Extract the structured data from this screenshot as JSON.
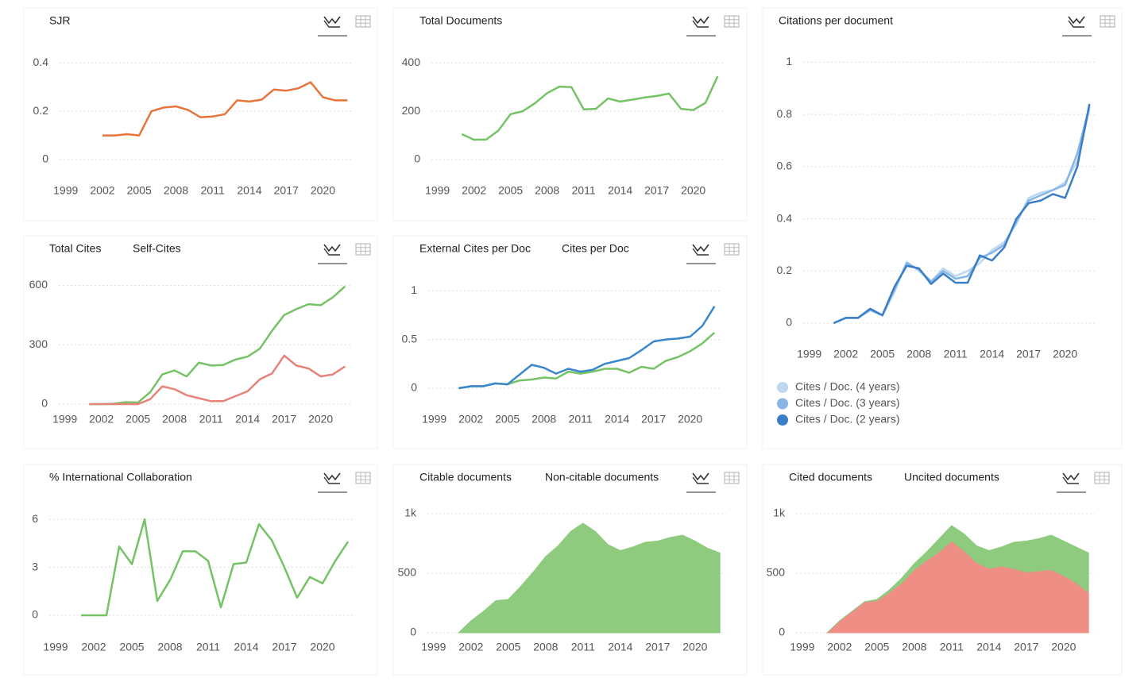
{
  "chart_data": [
    {
      "type": "line",
      "title": "SJR",
      "x": [
        2002,
        2003,
        2004,
        2005,
        2006,
        2007,
        2008,
        2009,
        2010,
        2011,
        2012,
        2013,
        2014,
        2015,
        2016,
        2017,
        2018,
        2019,
        2020,
        2021,
        2022
      ],
      "series": [
        {
          "name": null,
          "color": "#e8743b",
          "values": [
            0.1,
            0.1,
            0.105,
            0.1,
            0.2,
            0.215,
            0.22,
            0.205,
            0.175,
            0.178,
            0.188,
            0.245,
            0.24,
            0.248,
            0.29,
            0.285,
            0.295,
            0.32,
            0.258,
            0.245,
            0.245
          ]
        }
      ],
      "xlim": [
        1998.5,
        2022.5
      ],
      "xticks": [
        1999,
        2002,
        2005,
        2008,
        2011,
        2014,
        2017,
        2020
      ],
      "ylim": [
        0,
        0.45
      ],
      "yticks": [
        0,
        0.2,
        0.4
      ],
      "grid": true
    },
    {
      "type": "line",
      "title": "Total Documents",
      "x": [
        2001,
        2002,
        2003,
        2004,
        2005,
        2006,
        2007,
        2008,
        2009,
        2010,
        2011,
        2012,
        2013,
        2014,
        2015,
        2016,
        2017,
        2018,
        2019,
        2020,
        2021,
        2022
      ],
      "series": [
        {
          "name": null,
          "color": "#76c266",
          "values": [
            105,
            82,
            83,
            120,
            188,
            200,
            233,
            275,
            302,
            300,
            208,
            210,
            253,
            240,
            248,
            257,
            263,
            273,
            210,
            205,
            235,
            345
          ]
        }
      ],
      "xlim": [
        1998.5,
        2022.5
      ],
      "xticks": [
        1999,
        2002,
        2005,
        2008,
        2011,
        2014,
        2017,
        2020
      ],
      "ylim": [
        0,
        450
      ],
      "yticks": [
        0,
        200,
        400
      ],
      "grid": true
    },
    {
      "type": "line",
      "title": "Citations per document",
      "legend": "bottom",
      "x": [
        2001,
        2002,
        2003,
        2004,
        2005,
        2006,
        2007,
        2008,
        2009,
        2010,
        2011,
        2012,
        2013,
        2014,
        2015,
        2016,
        2017,
        2018,
        2019,
        2020,
        2021,
        2022
      ],
      "series": [
        {
          "name": "Cites / Doc. (4 years)",
          "color": "#bdd7f0",
          "values": [
            0,
            0.02,
            0.02,
            0.05,
            0.03,
            0.12,
            0.235,
            0.2,
            0.16,
            0.21,
            0.18,
            0.2,
            0.23,
            0.28,
            0.31,
            0.38,
            0.48,
            0.5,
            0.51,
            0.54,
            0.62,
            0.82
          ]
        },
        {
          "name": "Cites / Doc. (3 years)",
          "color": "#86b6e6",
          "values": [
            0,
            0.02,
            0.02,
            0.05,
            0.03,
            0.13,
            0.23,
            0.205,
            0.16,
            0.2,
            0.17,
            0.18,
            0.25,
            0.27,
            0.3,
            0.39,
            0.47,
            0.49,
            0.51,
            0.53,
            0.65,
            0.83
          ]
        },
        {
          "name": "Cites / Doc. (2 years)",
          "color": "#3a7ec6",
          "values": [
            0,
            0.02,
            0.02,
            0.055,
            0.03,
            0.14,
            0.22,
            0.21,
            0.15,
            0.19,
            0.155,
            0.155,
            0.26,
            0.24,
            0.29,
            0.4,
            0.46,
            0.47,
            0.495,
            0.48,
            0.6,
            0.84
          ]
        }
      ],
      "xlim": [
        1998.5,
        2022.5
      ],
      "xticks": [
        1999,
        2002,
        2005,
        2008,
        2011,
        2014,
        2017,
        2020
      ],
      "ylim": [
        0,
        1.05
      ],
      "yticks": [
        0,
        0.2,
        0.4,
        0.6,
        0.8,
        1
      ],
      "grid": true
    },
    {
      "type": "line",
      "legend": "top",
      "x": [
        2001,
        2002,
        2003,
        2004,
        2005,
        2006,
        2007,
        2008,
        2009,
        2010,
        2011,
        2012,
        2013,
        2014,
        2015,
        2016,
        2017,
        2018,
        2019,
        2020,
        2021,
        2022
      ],
      "series": [
        {
          "name": "Total Cites",
          "color": "#76c266",
          "values": [
            0,
            0,
            2,
            10,
            8,
            60,
            150,
            170,
            140,
            210,
            195,
            198,
            225,
            240,
            280,
            370,
            450,
            480,
            505,
            500,
            540,
            595
          ]
        },
        {
          "name": "Self-Cites",
          "color": "#e8837a",
          "values": [
            0,
            0,
            0,
            0,
            0,
            25,
            90,
            75,
            45,
            30,
            15,
            15,
            40,
            65,
            125,
            155,
            245,
            195,
            180,
            140,
            150,
            190
          ]
        }
      ],
      "xlim": [
        1998.5,
        2022.5
      ],
      "xticks": [
        1999,
        2002,
        2005,
        2008,
        2011,
        2014,
        2017,
        2020
      ],
      "ylim": [
        0,
        650
      ],
      "yticks": [
        0,
        300,
        600
      ],
      "grid": true
    },
    {
      "type": "line",
      "legend": "top",
      "x": [
        2001,
        2002,
        2003,
        2004,
        2005,
        2006,
        2007,
        2008,
        2009,
        2010,
        2011,
        2012,
        2013,
        2014,
        2015,
        2016,
        2017,
        2018,
        2019,
        2020,
        2021,
        2022
      ],
      "series": [
        {
          "name": "External Cites per Doc",
          "color": "#76c266",
          "values": [
            0,
            0.02,
            0.02,
            0.05,
            0.04,
            0.08,
            0.09,
            0.11,
            0.1,
            0.17,
            0.15,
            0.17,
            0.2,
            0.2,
            0.16,
            0.22,
            0.2,
            0.28,
            0.32,
            0.38,
            0.46,
            0.57
          ]
        },
        {
          "name": "Cites per Doc",
          "color": "#3a86cc",
          "values": [
            0,
            0.02,
            0.02,
            0.05,
            0.04,
            0.14,
            0.24,
            0.21,
            0.15,
            0.2,
            0.17,
            0.19,
            0.25,
            0.28,
            0.31,
            0.39,
            0.48,
            0.5,
            0.51,
            0.53,
            0.64,
            0.84
          ]
        }
      ],
      "xlim": [
        1998.5,
        2022.5
      ],
      "xticks": [
        1999,
        2002,
        2005,
        2008,
        2011,
        2014,
        2017,
        2020
      ],
      "ylim": [
        0,
        1.1
      ],
      "yticks": [
        0,
        0.5,
        1
      ],
      "grid": true
    },
    {
      "type": "line",
      "title": "% International Collaboration",
      "x": [
        2001,
        2002,
        2003,
        2004,
        2005,
        2006,
        2007,
        2008,
        2009,
        2010,
        2011,
        2012,
        2013,
        2014,
        2015,
        2016,
        2017,
        2018,
        2019,
        2020,
        2021,
        2022
      ],
      "series": [
        {
          "name": null,
          "color": "#76c266",
          "values": [
            0,
            0,
            0,
            4.3,
            3.2,
            6.0,
            0.9,
            2.2,
            4.0,
            4.0,
            3.4,
            0.5,
            3.2,
            3.3,
            5.7,
            4.7,
            3.0,
            1.1,
            2.4,
            2.0,
            3.4,
            4.6
          ]
        }
      ],
      "xlim": [
        1998.5,
        2022.5
      ],
      "xticks": [
        1999,
        2002,
        2005,
        2008,
        2011,
        2014,
        2017,
        2020
      ],
      "ylim": [
        0,
        7
      ],
      "yticks": [
        0,
        3,
        6
      ],
      "grid": true
    },
    {
      "type": "area",
      "stacked": true,
      "legend": "top",
      "x": [
        2001,
        2002,
        2003,
        2004,
        2005,
        2006,
        2007,
        2008,
        2009,
        2010,
        2011,
        2012,
        2013,
        2014,
        2015,
        2016,
        2017,
        2018,
        2019,
        2020,
        2021,
        2022
      ],
      "series": [
        {
          "name": "Citable documents",
          "color": "#8fcb7f",
          "values": [
            0,
            100,
            180,
            270,
            280,
            390,
            510,
            640,
            730,
            850,
            920,
            850,
            740,
            690,
            720,
            760,
            770,
            800,
            820,
            770,
            710,
            670
          ]
        },
        {
          "name": "Non-citable documents",
          "color": "#ee8e84",
          "values": [
            0,
            0,
            0,
            0,
            0,
            0,
            0,
            0,
            0,
            0,
            0,
            0,
            0,
            0,
            0,
            0,
            0,
            0,
            0,
            0,
            0,
            0
          ]
        }
      ],
      "xlim": [
        1998.5,
        2022.5
      ],
      "xticks": [
        1999,
        2002,
        2005,
        2008,
        2011,
        2014,
        2017,
        2020
      ],
      "ylim": [
        0,
        1100
      ],
      "yticks": [
        0,
        500,
        {
          "value": 1000,
          "label": "1k"
        }
      ],
      "grid": true
    },
    {
      "type": "area",
      "stacked": true,
      "legend": "top",
      "x": [
        2001,
        2002,
        2003,
        2004,
        2005,
        2006,
        2007,
        2008,
        2009,
        2010,
        2011,
        2012,
        2013,
        2014,
        2015,
        2016,
        2017,
        2018,
        2019,
        2020,
        2021,
        2022
      ],
      "series": [
        {
          "name": "Cited documents",
          "color": "#8fcb7f",
          "values": [
            0,
            0,
            0,
            0,
            10,
            20,
            40,
            50,
            70,
            110,
            130,
            140,
            140,
            150,
            160,
            220,
            260,
            270,
            290,
            290,
            300,
            330
          ]
        },
        {
          "name": "Uncited documents",
          "color": "#ee8e84",
          "values": [
            0,
            100,
            180,
            260,
            270,
            340,
            420,
            530,
            610,
            680,
            770,
            690,
            590,
            540,
            560,
            540,
            510,
            520,
            530,
            480,
            420,
            340
          ]
        }
      ],
      "xlim": [
        1998.5,
        2022.5
      ],
      "xticks": [
        1999,
        2002,
        2005,
        2008,
        2011,
        2014,
        2017,
        2020
      ],
      "ylim": [
        0,
        1100
      ],
      "yticks": [
        0,
        500,
        {
          "value": 1000,
          "label": "1k"
        }
      ],
      "grid": true
    }
  ]
}
